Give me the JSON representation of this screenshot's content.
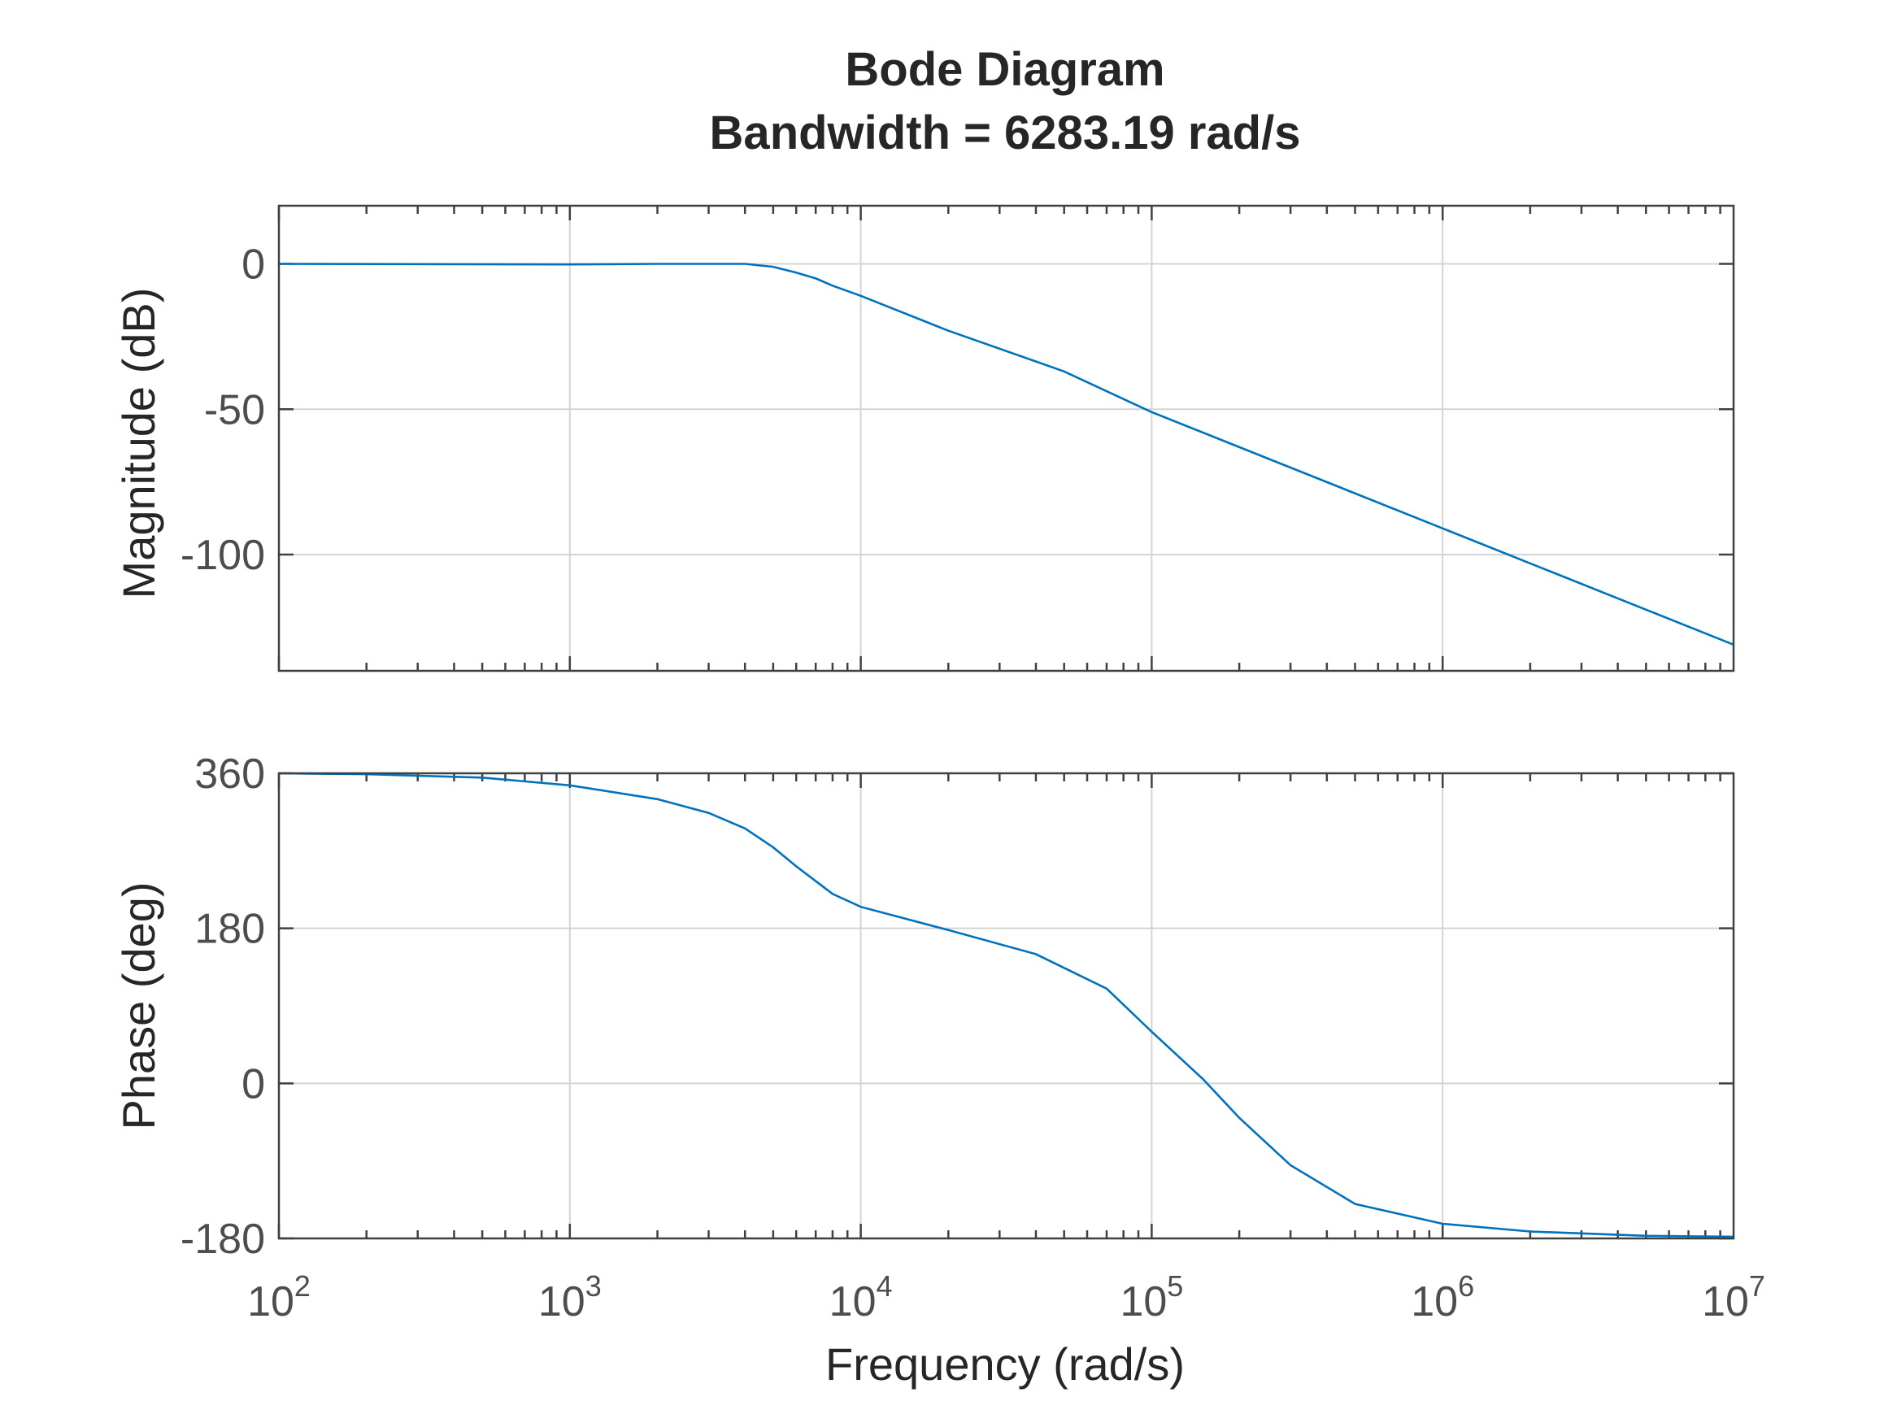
{
  "chart_data": {
    "type": "line",
    "title": "Bode Diagram",
    "subtitle": "Bandwidth = 6283.19 rad/s",
    "xlabel": "Frequency (rad/s)",
    "xscale": "log",
    "xlim": [
      100,
      10000000
    ],
    "x_ticks": [
      {
        "base": "10",
        "exp": "2"
      },
      {
        "base": "10",
        "exp": "3"
      },
      {
        "base": "10",
        "exp": "4"
      },
      {
        "base": "10",
        "exp": "5"
      },
      {
        "base": "10",
        "exp": "6"
      },
      {
        "base": "10",
        "exp": "7"
      }
    ],
    "grid": true,
    "series_color": "#0072BD",
    "panels": [
      {
        "ylabel": "Magnitude (dB)",
        "ylim": [
          -140,
          20
        ],
        "y_ticks": [
          "0",
          "-50",
          "-100"
        ],
        "y_tick_values": [
          0,
          -50,
          -100
        ],
        "x": [
          100,
          1000,
          2000,
          3000,
          4000,
          5000,
          6000,
          7000,
          8000,
          10000,
          20000,
          50000,
          100000,
          1000000,
          10000000
        ],
        "y": [
          0,
          -0.2,
          0,
          0,
          0,
          -1,
          -3,
          -5,
          -7.5,
          -11,
          -23,
          -37,
          -51,
          -91,
          -131
        ]
      },
      {
        "ylabel": "Phase (deg)",
        "ylim": [
          -180,
          360
        ],
        "y_ticks": [
          "360",
          "180",
          "0",
          "-180"
        ],
        "y_tick_values": [
          360,
          180,
          0,
          -180
        ],
        "x": [
          100,
          200,
          500,
          1000,
          2000,
          3000,
          4000,
          5000,
          6000,
          8000,
          10000,
          20000,
          40000,
          70000,
          100000,
          150000,
          200000,
          300000,
          500000,
          1000000,
          2000000,
          5000000,
          10000000
        ],
        "y": [
          360,
          359,
          355,
          346,
          330,
          314,
          296,
          274,
          252,
          220,
          205,
          178,
          150,
          110,
          60,
          5,
          -40,
          -95,
          -140,
          -163,
          -172,
          -177,
          -178
        ]
      }
    ]
  }
}
